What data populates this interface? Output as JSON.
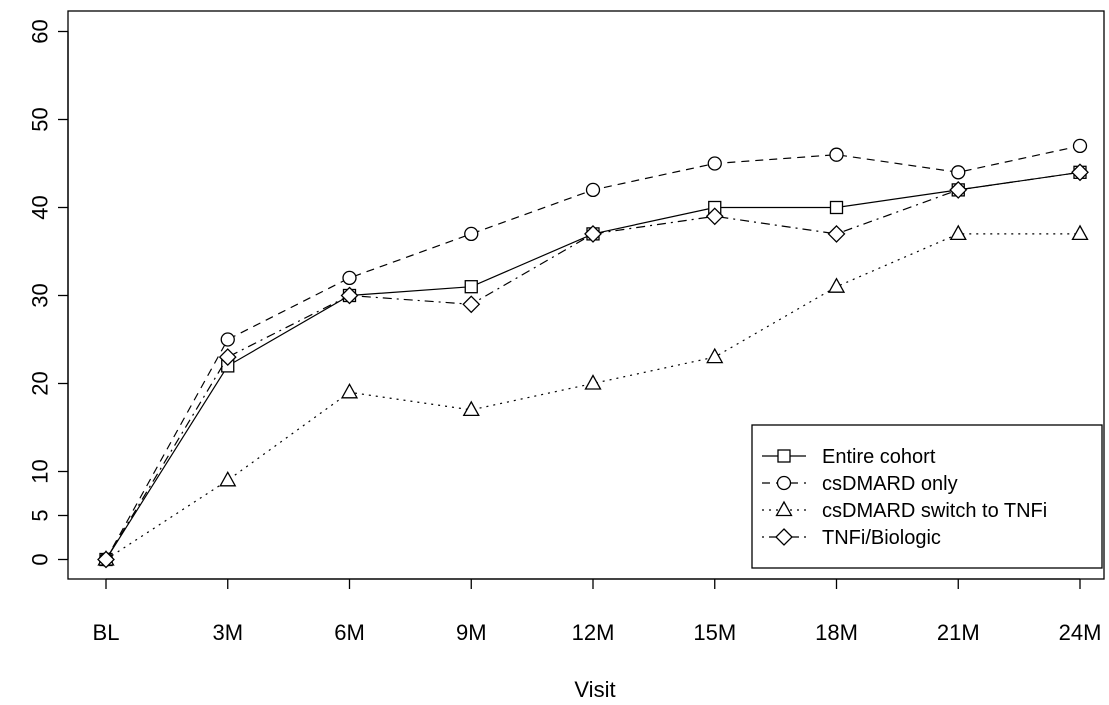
{
  "chart_data": {
    "type": "line",
    "title": "",
    "xlabel": "Visit",
    "ylabel": "",
    "categories": [
      "BL",
      "3M",
      "6M",
      "9M",
      "12M",
      "15M",
      "18M",
      "21M",
      "24M"
    ],
    "y_ticks": [
      0,
      5,
      10,
      20,
      30,
      40,
      50,
      60
    ],
    "ylim": [
      -2.5,
      62.5
    ],
    "grid": false,
    "legend_position": "bottom-right",
    "series": [
      {
        "name": "Entire cohort",
        "marker": "square",
        "line_style": "solid",
        "values": [
          0,
          22,
          30,
          31,
          37,
          40,
          40,
          42,
          44
        ]
      },
      {
        "name": "csDMARD only",
        "marker": "circle",
        "line_style": "dashed",
        "values": [
          0,
          25,
          32,
          37,
          42,
          45,
          46,
          44,
          47
        ]
      },
      {
        "name": "csDMARD switch to TNFi",
        "marker": "triangle",
        "line_style": "dotted",
        "values": [
          0,
          9,
          19,
          17,
          20,
          23,
          31,
          37,
          37
        ]
      },
      {
        "name": "TNFi/Biologic",
        "marker": "diamond",
        "line_style": "dotdash",
        "values": [
          0,
          23,
          30,
          29,
          37,
          39,
          37,
          42,
          44
        ]
      }
    ]
  }
}
